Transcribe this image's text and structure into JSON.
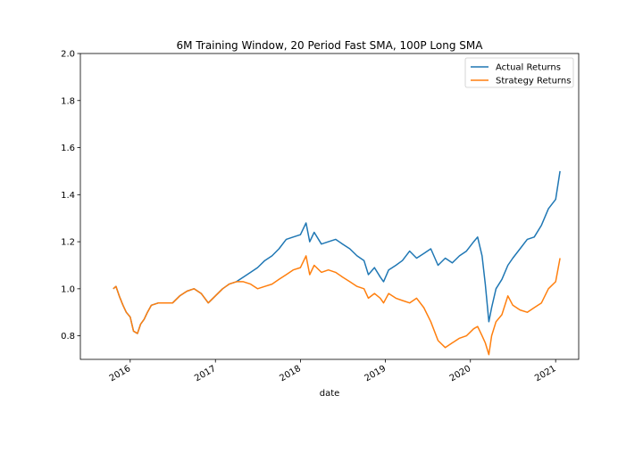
{
  "chart_data": {
    "type": "line",
    "title": "6M Training Window, 20 Period Fast SMA, 100P Long SMA",
    "xlabel": "date",
    "ylabel": "",
    "xlim": [
      "2015-06-01",
      "2021-04-10"
    ],
    "ylim": [
      0.7,
      2.0
    ],
    "x_ticks": [
      "2016",
      "2017",
      "2018",
      "2019",
      "2020",
      "2021"
    ],
    "y_ticks": [
      "0.8",
      "1.0",
      "1.2",
      "1.4",
      "1.6",
      "1.8",
      "2.0"
    ],
    "grid": false,
    "legend_position": "upper right",
    "series": [
      {
        "name": "Actual Returns",
        "color": "#1f77b4",
        "points": [
          [
            "2015-10-20",
            1.0
          ],
          [
            "2015-11-01",
            1.01
          ],
          [
            "2015-11-15",
            0.97
          ],
          [
            "2015-12-01",
            0.93
          ],
          [
            "2015-12-15",
            0.9
          ],
          [
            "2016-01-01",
            0.88
          ],
          [
            "2016-01-15",
            0.82
          ],
          [
            "2016-02-01",
            0.81
          ],
          [
            "2016-02-15",
            0.85
          ],
          [
            "2016-03-01",
            0.87
          ],
          [
            "2016-03-15",
            0.9
          ],
          [
            "2016-04-01",
            0.93
          ],
          [
            "2016-05-01",
            0.94
          ],
          [
            "2016-06-01",
            0.94
          ],
          [
            "2016-07-01",
            0.94
          ],
          [
            "2016-08-01",
            0.97
          ],
          [
            "2016-09-01",
            0.99
          ],
          [
            "2016-10-01",
            1.0
          ],
          [
            "2016-11-01",
            0.98
          ],
          [
            "2016-12-01",
            0.94
          ],
          [
            "2017-01-01",
            0.97
          ],
          [
            "2017-02-01",
            1.0
          ],
          [
            "2017-03-01",
            1.02
          ],
          [
            "2017-04-01",
            1.03
          ],
          [
            "2017-05-01",
            1.05
          ],
          [
            "2017-06-01",
            1.07
          ],
          [
            "2017-07-01",
            1.09
          ],
          [
            "2017-08-01",
            1.12
          ],
          [
            "2017-09-01",
            1.14
          ],
          [
            "2017-10-01",
            1.17
          ],
          [
            "2017-11-01",
            1.21
          ],
          [
            "2017-12-01",
            1.22
          ],
          [
            "2018-01-01",
            1.23
          ],
          [
            "2018-01-25",
            1.28
          ],
          [
            "2018-02-10",
            1.2
          ],
          [
            "2018-03-01",
            1.24
          ],
          [
            "2018-04-01",
            1.19
          ],
          [
            "2018-05-01",
            1.2
          ],
          [
            "2018-06-01",
            1.21
          ],
          [
            "2018-07-01",
            1.19
          ],
          [
            "2018-08-01",
            1.17
          ],
          [
            "2018-09-01",
            1.14
          ],
          [
            "2018-10-01",
            1.12
          ],
          [
            "2018-10-20",
            1.06
          ],
          [
            "2018-11-15",
            1.09
          ],
          [
            "2018-12-10",
            1.05
          ],
          [
            "2018-12-24",
            1.03
          ],
          [
            "2019-01-15",
            1.08
          ],
          [
            "2019-02-15",
            1.1
          ],
          [
            "2019-03-15",
            1.12
          ],
          [
            "2019-04-15",
            1.16
          ],
          [
            "2019-05-15",
            1.13
          ],
          [
            "2019-06-15",
            1.15
          ],
          [
            "2019-07-15",
            1.17
          ],
          [
            "2019-08-15",
            1.1
          ],
          [
            "2019-09-15",
            1.13
          ],
          [
            "2019-10-15",
            1.11
          ],
          [
            "2019-11-15",
            1.14
          ],
          [
            "2019-12-15",
            1.16
          ],
          [
            "2020-01-15",
            1.2
          ],
          [
            "2020-02-01",
            1.22
          ],
          [
            "2020-02-20",
            1.14
          ],
          [
            "2020-03-05",
            1.02
          ],
          [
            "2020-03-20",
            0.86
          ],
          [
            "2020-04-01",
            0.92
          ],
          [
            "2020-04-20",
            1.0
          ],
          [
            "2020-05-15",
            1.04
          ],
          [
            "2020-06-10",
            1.1
          ],
          [
            "2020-07-01",
            1.13
          ],
          [
            "2020-08-01",
            1.17
          ],
          [
            "2020-09-01",
            1.21
          ],
          [
            "2020-10-01",
            1.22
          ],
          [
            "2020-11-01",
            1.27
          ],
          [
            "2020-12-01",
            1.34
          ],
          [
            "2021-01-01",
            1.38
          ],
          [
            "2021-01-20",
            1.5
          ]
        ]
      },
      {
        "name": "Strategy Returns",
        "color": "#ff7f0e",
        "points": [
          [
            "2015-10-20",
            1.0
          ],
          [
            "2015-11-01",
            1.01
          ],
          [
            "2015-11-15",
            0.97
          ],
          [
            "2015-12-01",
            0.93
          ],
          [
            "2015-12-15",
            0.9
          ],
          [
            "2016-01-01",
            0.88
          ],
          [
            "2016-01-15",
            0.82
          ],
          [
            "2016-02-01",
            0.81
          ],
          [
            "2016-02-15",
            0.85
          ],
          [
            "2016-03-01",
            0.87
          ],
          [
            "2016-03-15",
            0.9
          ],
          [
            "2016-04-01",
            0.93
          ],
          [
            "2016-05-01",
            0.94
          ],
          [
            "2016-06-01",
            0.94
          ],
          [
            "2016-07-01",
            0.94
          ],
          [
            "2016-08-01",
            0.97
          ],
          [
            "2016-09-01",
            0.99
          ],
          [
            "2016-10-01",
            1.0
          ],
          [
            "2016-11-01",
            0.98
          ],
          [
            "2016-12-01",
            0.94
          ],
          [
            "2017-01-01",
            0.97
          ],
          [
            "2017-02-01",
            1.0
          ],
          [
            "2017-03-01",
            1.02
          ],
          [
            "2017-04-01",
            1.03
          ],
          [
            "2017-05-01",
            1.03
          ],
          [
            "2017-06-01",
            1.02
          ],
          [
            "2017-07-01",
            1.0
          ],
          [
            "2017-08-01",
            1.01
          ],
          [
            "2017-09-01",
            1.02
          ],
          [
            "2017-10-01",
            1.04
          ],
          [
            "2017-11-01",
            1.06
          ],
          [
            "2017-12-01",
            1.08
          ],
          [
            "2018-01-01",
            1.09
          ],
          [
            "2018-01-25",
            1.14
          ],
          [
            "2018-02-10",
            1.06
          ],
          [
            "2018-03-01",
            1.1
          ],
          [
            "2018-04-01",
            1.07
          ],
          [
            "2018-05-01",
            1.08
          ],
          [
            "2018-06-01",
            1.07
          ],
          [
            "2018-07-01",
            1.05
          ],
          [
            "2018-08-01",
            1.03
          ],
          [
            "2018-09-01",
            1.01
          ],
          [
            "2018-10-01",
            1.0
          ],
          [
            "2018-10-20",
            0.96
          ],
          [
            "2018-11-15",
            0.98
          ],
          [
            "2018-12-10",
            0.96
          ],
          [
            "2018-12-24",
            0.94
          ],
          [
            "2019-01-15",
            0.98
          ],
          [
            "2019-02-15",
            0.96
          ],
          [
            "2019-03-15",
            0.95
          ],
          [
            "2019-04-15",
            0.94
          ],
          [
            "2019-05-15",
            0.96
          ],
          [
            "2019-06-15",
            0.92
          ],
          [
            "2019-07-15",
            0.86
          ],
          [
            "2019-08-15",
            0.78
          ],
          [
            "2019-09-15",
            0.75
          ],
          [
            "2019-10-15",
            0.77
          ],
          [
            "2019-11-15",
            0.79
          ],
          [
            "2019-12-15",
            0.8
          ],
          [
            "2020-01-15",
            0.83
          ],
          [
            "2020-02-01",
            0.84
          ],
          [
            "2020-02-20",
            0.8
          ],
          [
            "2020-03-05",
            0.77
          ],
          [
            "2020-03-20",
            0.72
          ],
          [
            "2020-04-01",
            0.8
          ],
          [
            "2020-04-20",
            0.86
          ],
          [
            "2020-05-15",
            0.89
          ],
          [
            "2020-06-10",
            0.97
          ],
          [
            "2020-07-01",
            0.93
          ],
          [
            "2020-08-01",
            0.91
          ],
          [
            "2020-09-01",
            0.9
          ],
          [
            "2020-10-01",
            0.92
          ],
          [
            "2020-11-01",
            0.94
          ],
          [
            "2020-12-01",
            1.0
          ],
          [
            "2021-01-01",
            1.03
          ],
          [
            "2021-01-20",
            1.13
          ]
        ]
      }
    ]
  }
}
